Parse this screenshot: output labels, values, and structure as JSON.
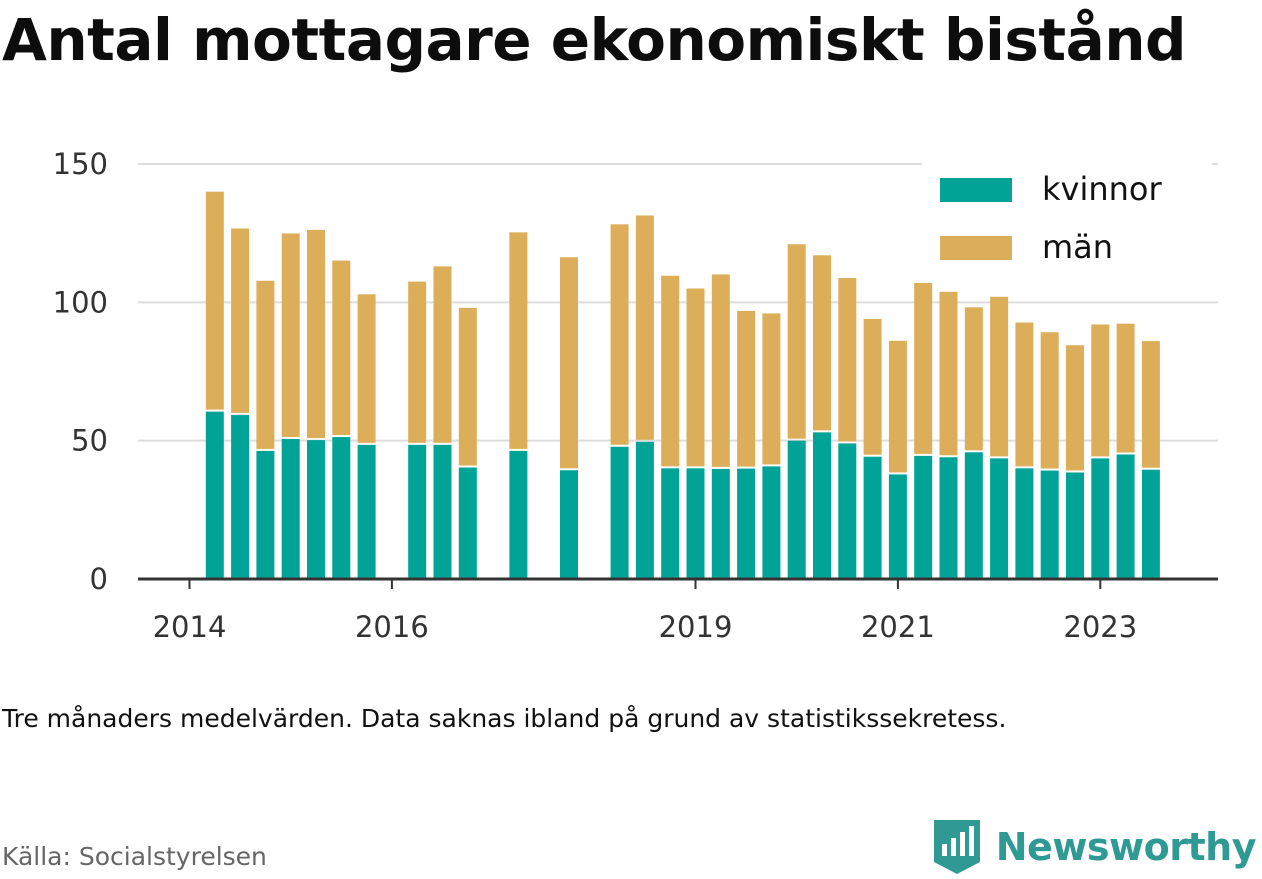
{
  "title": "Antal mottagare ekonomiskt bistånd",
  "caption": "Tre månaders medelvärden. Data saknas ibland på grund av statistikssekretess.",
  "source": "Källa: Socialstyrelsen",
  "brand": {
    "name": "Newsworthy",
    "icon": "newsworthy-logo-icon",
    "color": "#2f9a94"
  },
  "colors": {
    "kvinnor": "#00a396",
    "man": "#dcae5a",
    "grid": "#dddddd",
    "axis": "#333333"
  },
  "chart_data": {
    "type": "bar",
    "stacked": true,
    "x_ticks": [
      "2014",
      "2016",
      "2019",
      "2021",
      "2023"
    ],
    "y_ticks": [
      0,
      50,
      100,
      150
    ],
    "ylim": [
      0,
      150
    ],
    "legend": {
      "placement": "top-right",
      "entries": [
        "kvinnor",
        "män"
      ]
    },
    "grid": true,
    "categories": [
      "2014 Q2",
      "2014 Q3",
      "2014 Q4",
      "2015 Q1",
      "2015 Q2",
      "2015 Q3",
      "2015 Q4",
      "2016 Q2",
      "2016 Q3",
      "2016 Q4",
      "2017 Q2",
      "2017 Q4",
      "2018 Q2",
      "2018 Q3",
      "2018 Q4",
      "2019 Q1",
      "2019 Q2",
      "2019 Q3",
      "2019 Q4",
      "2020 Q1",
      "2020 Q2",
      "2020 Q3",
      "2020 Q4",
      "2021 Q1",
      "2021 Q2",
      "2021 Q3",
      "2021 Q4",
      "2022 Q1",
      "2022 Q2",
      "2022 Q3",
      "2022 Q4",
      "2023 Q1",
      "2023 Q2",
      "2023 Q3"
    ],
    "series": [
      {
        "name": "kvinnor",
        "values": [
          60.5,
          59.3,
          46.3,
          50.6,
          50.2,
          51.3,
          48.5,
          48.5,
          48.5,
          40.3,
          46.3,
          39.3,
          47.8,
          49.6,
          40.0,
          40.0,
          39.8,
          39.9,
          40.7,
          50.0,
          53.0,
          49.0,
          44.2,
          37.8,
          44.5,
          44.0,
          45.8,
          43.6,
          40.0,
          39.2,
          38.5,
          43.6,
          45.0,
          39.5
        ]
      },
      {
        "name": "män",
        "values": [
          79.5,
          67.4,
          61.5,
          74.3,
          76.0,
          63.8,
          54.4,
          59.0,
          64.5,
          57.7,
          79.0,
          77.0,
          80.4,
          81.8,
          69.6,
          65.0,
          70.3,
          57.0,
          55.3,
          71.0,
          64.0,
          59.8,
          49.8,
          48.3,
          62.5,
          59.8,
          52.4,
          58.4,
          52.7,
          50.0,
          46.0,
          48.4,
          47.3,
          46.5
        ]
      }
    ]
  }
}
